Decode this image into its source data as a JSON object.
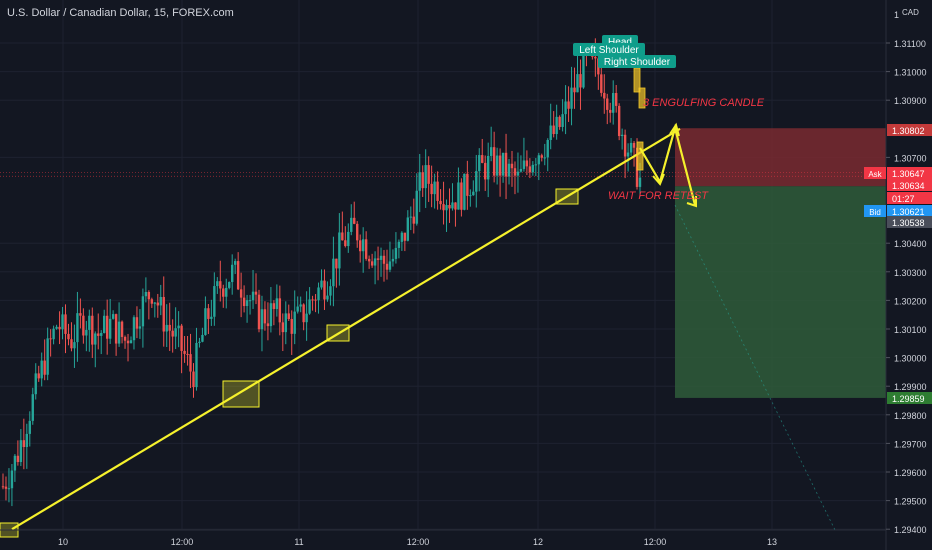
{
  "header": {
    "title": "U.S. Dollar / Canadian Dollar, 15, FOREX.com"
  },
  "price_axis": {
    "currency": "CAD",
    "multiplier": "1",
    "ticks": [
      "1.31100",
      "1.31000",
      "1.30900",
      "1.30700",
      "1.30400",
      "1.30300",
      "1.30200",
      "1.30100",
      "1.30000",
      "1.29900",
      "1.29800",
      "1.29700",
      "1.29600",
      "1.29500",
      "1.29400"
    ],
    "labels": [
      {
        "name": "stop-level-label",
        "text": "1.30802",
        "price": 1.30802,
        "bg": "#c43a3a",
        "fg": "#ffffff"
      },
      {
        "name": "ask-label",
        "tag": "Ask",
        "text": "1.30647",
        "price": 1.30647,
        "bg": "#f23645",
        "fg": "#ffffff"
      },
      {
        "name": "entry-level-label",
        "text": "1.30634",
        "price": 1.30634,
        "bg": "#f23645",
        "fg": "#ffffff"
      },
      {
        "name": "countdown-label",
        "text": "01:27",
        "price": 1.306,
        "bg": "#f23645",
        "fg": "#ffffff"
      },
      {
        "name": "bid-label",
        "tag": "Bid",
        "text": "1.30621",
        "price": 1.30571,
        "bg": "#2196f3",
        "fg": "#ffffff"
      },
      {
        "name": "price-label-30538",
        "text": "1.30538",
        "price": 1.30538,
        "bg": "#4a4e5a",
        "fg": "#ffffff"
      },
      {
        "name": "target-level-label",
        "text": "1.29859",
        "price": 1.29859,
        "bg": "#2e7d32",
        "fg": "#ffffff"
      }
    ]
  },
  "time_axis": {
    "ticks": [
      "10",
      "12:00",
      "11",
      "12:00",
      "12",
      "12:00",
      "13"
    ]
  },
  "annotations": {
    "pattern_head": "Head",
    "pattern_left_shoulder": "Left Shoulder",
    "pattern_right_shoulder": "Right Shoulder",
    "engulfing_note": "3 ENGULFING CANDLE",
    "retest_note": "WAIT FOR RETEST"
  },
  "colors": {
    "background": "#131722",
    "candle_up": "#26a69a",
    "candle_down": "#ef5350",
    "trendline": "#f5f12c",
    "stop_zone": "#7a2a30",
    "target_zone": "#2f5c3a",
    "note_red": "#f23645",
    "pattern_label_bg": "#0f9d8a",
    "grid": "#1e2230",
    "axis_text": "#d1d4dc"
  },
  "chart_data": {
    "type": "candlestick",
    "symbol": "USDCAD",
    "timeframe": "15",
    "y_axis": {
      "min": 1.294,
      "max": 1.3116,
      "scale": "linear"
    },
    "trendline": {
      "from_price": 1.294,
      "to_price": 1.308
    },
    "position": {
      "side": "short",
      "entry": 1.30634,
      "stop": 1.30802,
      "target": 1.29859
    },
    "price_path_mid": [
      1.2955,
      1.2965,
      1.2982,
      1.2998,
      1.3012,
      1.3006,
      1.3014,
      1.3008,
      1.3012,
      1.3006,
      1.3016,
      1.3024,
      1.3012,
      1.3005,
      1.2994,
      1.3013,
      1.3025,
      1.303,
      1.3022,
      1.3014,
      1.3016,
      1.3012,
      1.3014,
      1.3022,
      1.3028,
      1.304,
      1.3045,
      1.3038,
      1.3033,
      1.3035,
      1.3048,
      1.3063,
      1.306,
      1.3055,
      1.3058,
      1.3065,
      1.3068,
      1.3066,
      1.3062,
      1.307,
      1.3075,
      1.308,
      1.3092,
      1.3104,
      1.3099,
      1.3088,
      1.3075,
      1.3062
    ]
  }
}
